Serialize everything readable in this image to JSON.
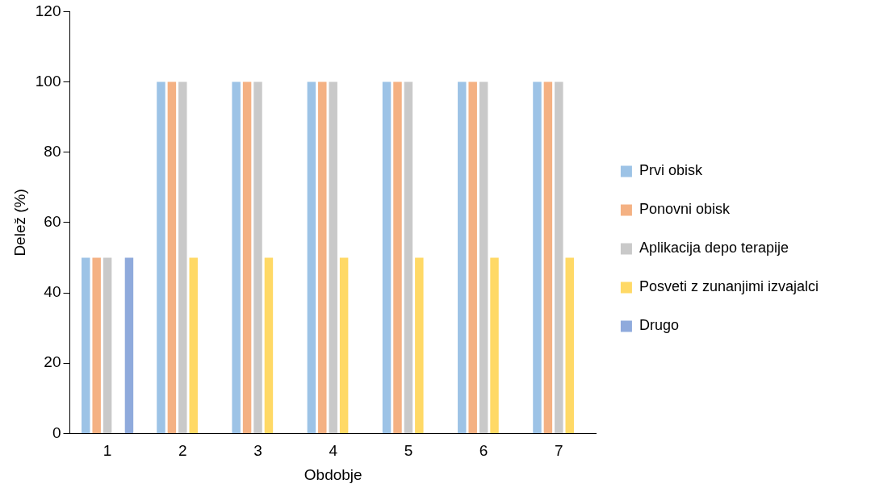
{
  "chart_data": {
    "type": "bar",
    "xlabel": "Obdobje",
    "ylabel": "Delež (%)",
    "categories": [
      "1",
      "2",
      "3",
      "4",
      "5",
      "6",
      "7"
    ],
    "series": [
      {
        "name": "Prvi obisk",
        "color": "#9dc3e6",
        "values": [
          50,
          100,
          100,
          100,
          100,
          100,
          100
        ]
      },
      {
        "name": "Ponovni obisk",
        "color": "#f4b183",
        "values": [
          50,
          100,
          100,
          100,
          100,
          100,
          100
        ]
      },
      {
        "name": "Aplikacija depo terapije",
        "color": "#c9c9c9",
        "values": [
          50,
          100,
          100,
          100,
          100,
          100,
          100
        ]
      },
      {
        "name": "Posveti z zunanjimi izvajalci",
        "color": "#ffd966",
        "values": [
          0,
          50,
          50,
          50,
          50,
          50,
          50
        ]
      },
      {
        "name": "Drugo",
        "color": "#8faadc",
        "values": [
          50,
          0,
          0,
          0,
          0,
          0,
          0
        ]
      }
    ],
    "ylim": [
      0,
      120
    ],
    "yticks": [
      0,
      20,
      40,
      60,
      80,
      100,
      120
    ],
    "grid": false,
    "legend": "right"
  }
}
